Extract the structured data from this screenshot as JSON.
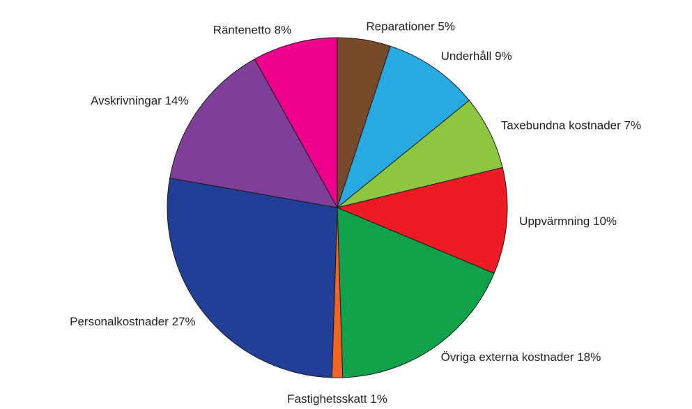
{
  "chart_data": {
    "type": "pie",
    "categories": [
      "Reparationer",
      "Underhåll",
      "Taxebundna kostnader",
      "Uppvärmning",
      "Övriga externa kostnader",
      "Fastighetsskatt",
      "Personalkostnader",
      "Avskrivningar",
      "Räntenetto"
    ],
    "values": [
      5,
      9,
      7,
      10,
      18,
      1,
      27,
      14,
      8
    ],
    "value_labels": [
      "5%",
      "9%",
      "7%",
      "10%",
      "18%",
      "1%",
      "27%",
      "14%",
      "8%"
    ],
    "colors": [
      "#774b2a",
      "#29a9e1",
      "#8dc63f",
      "#ed1c24",
      "#10a14a",
      "#f26522",
      "#223f98",
      "#7f3f98",
      "#ec008c"
    ]
  }
}
